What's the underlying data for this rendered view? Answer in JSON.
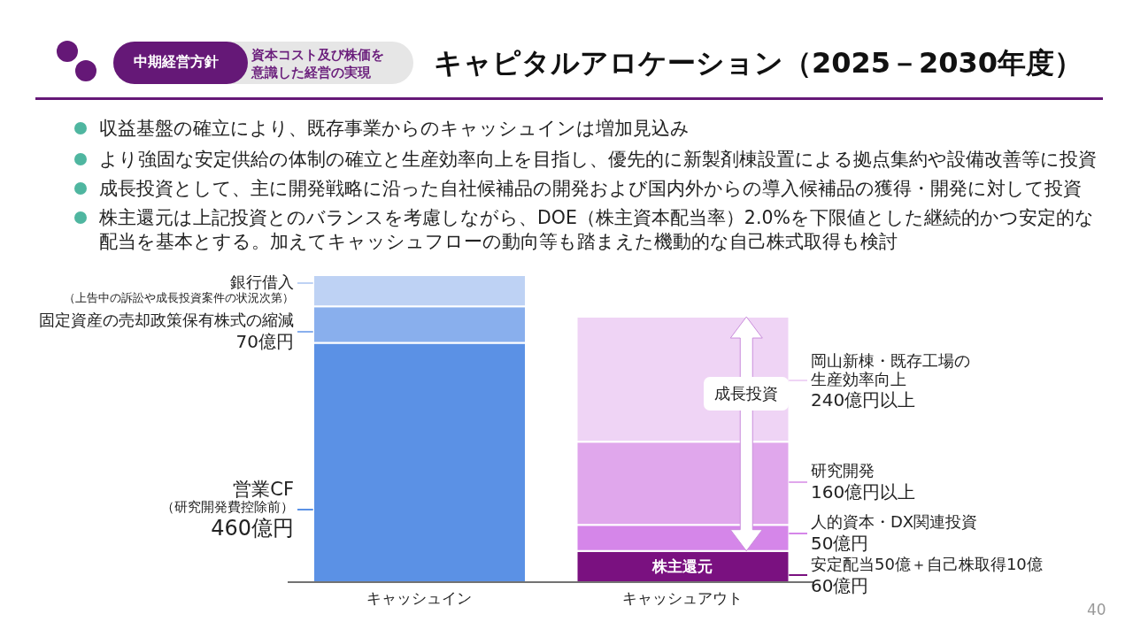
{
  "chart_data": {
    "type": "bar",
    "stacked": true,
    "title": "キャピタルアロケーション（2025－2030年度）",
    "categories": [
      "キャッシュイン",
      "キャッシュアウト"
    ],
    "series": [
      {
        "name": "営業CF",
        "color": "#5b91e5",
        "values": [
          460,
          null
        ],
        "value_labels": [
          "460億円",
          null
        ]
      },
      {
        "name": "固定資産の売却政策保有株式の縮減",
        "color": "#89afed",
        "values": [
          70,
          null
        ],
        "value_labels": [
          "70億円",
          null
        ]
      },
      {
        "name": "銀行借入",
        "color": "#bed2f4",
        "values": [
          60,
          null
        ]
      },
      {
        "name": "株主還元",
        "color": "#7a1180",
        "values": [
          null,
          60
        ],
        "value_labels": [
          null,
          "60億円"
        ]
      },
      {
        "name": "人的資本・DX関連投資",
        "color": "#d586e9",
        "values": [
          null,
          50
        ],
        "value_labels": [
          null,
          "50億円"
        ]
      },
      {
        "name": "研究開発",
        "color": "#e0a7ec",
        "values": [
          null,
          160
        ],
        "value_labels": [
          null,
          "160億円以上"
        ]
      },
      {
        "name": "岡山新棟・既存工場の生産効率向上",
        "color": "#efd4f5",
        "values": [
          null,
          240
        ],
        "value_labels": [
          null,
          "240億円以上"
        ]
      }
    ],
    "annotations": [
      "中期経営方針",
      "資本コスト及び株価を意識した経営の実現",
      "収益基盤の確立により、既存事業からのキャッシュインは増加見込み",
      "より強固な安定供給の体制の確立と生産効率向上を目指し、優先的に新製剤棟設置による拠点集約や設備改善等に投資",
      "成長投資として、主に開発戦略に沿った自社候補品の開発および国内外からの導入候補品の獲得・開発に対して投資",
      "株主還元は上記投資とのバランスを考慮しながら、DOE（株主資本配当率）2.0%を下限値とした継続的かつ安定的な配当を基本とする。加えてキャッシュフローの動向等も踏まえた機動的な自己株式取得も検討",
      "（上告中の訴訟や成長投資案件の状況次第）",
      "（研究開発費控除前）",
      "安定配当50億＋自己株取得10億",
      "成長投資",
      "40"
    ]
  }
}
